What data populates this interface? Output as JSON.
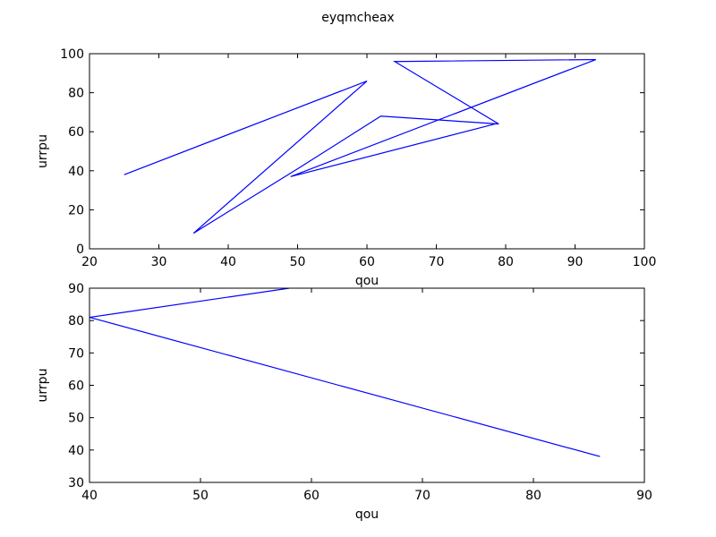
{
  "title": "eyqmcheax",
  "chart_data": [
    {
      "type": "line",
      "xlabel": "qou",
      "ylabel": "urrpu",
      "xlim": [
        20,
        100
      ],
      "ylim": [
        0,
        100
      ],
      "xticks": [
        20,
        30,
        40,
        50,
        60,
        70,
        80,
        90,
        100
      ],
      "yticks": [
        0,
        20,
        40,
        60,
        80,
        100
      ],
      "color": "#0000ff",
      "series": [
        {
          "x": [
            25,
            60,
            35,
            50,
            62,
            79,
            64,
            93,
            49,
            78.5
          ],
          "y": [
            38,
            86,
            8,
            41,
            68,
            64,
            96,
            97,
            37,
            64
          ]
        }
      ]
    },
    {
      "type": "line",
      "xlabel": "qou",
      "ylabel": "urrpu",
      "xlim": [
        40,
        90
      ],
      "ylim": [
        30,
        90
      ],
      "xticks": [
        40,
        50,
        60,
        70,
        80,
        90
      ],
      "yticks": [
        30,
        40,
        50,
        60,
        70,
        80,
        90
      ],
      "color": "#0000ff",
      "series": [
        {
          "x": [
            58,
            40,
            86
          ],
          "y": [
            90,
            81,
            38
          ]
        }
      ]
    }
  ]
}
